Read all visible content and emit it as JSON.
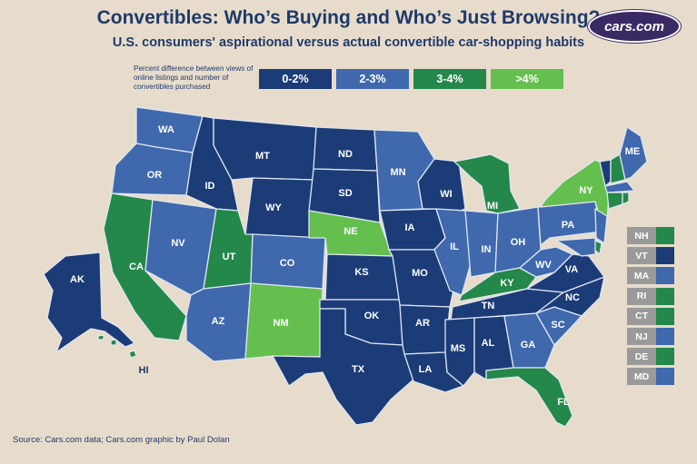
{
  "title": "Convertibles: Who’s Buying and Who’s Just Browsing?",
  "subtitle": "U.S. consumers' aspirational versus actual convertible car-shopping habits",
  "logo_text": "cars.com",
  "legend": {
    "description": "Percent difference between views of online listings and number of convertibles purchased",
    "items": [
      {
        "label": "0-2%",
        "color": "#1c3c78"
      },
      {
        "label": "2-3%",
        "color": "#3f68ad"
      },
      {
        "label": "3-4%",
        "color": "#23884a"
      },
      {
        "label": ">4%",
        "color": "#64bf4f"
      }
    ]
  },
  "states": {
    "WA": {
      "label": "WA",
      "category": "2-3%"
    },
    "OR": {
      "label": "OR",
      "category": "2-3%"
    },
    "CA": {
      "label": "CA",
      "category": "3-4%"
    },
    "NV": {
      "label": "NV",
      "category": "2-3%"
    },
    "ID": {
      "label": "ID",
      "category": "0-2%"
    },
    "MT": {
      "label": "MT",
      "category": "0-2%"
    },
    "WY": {
      "label": "WY",
      "category": "0-2%"
    },
    "UT": {
      "label": "UT",
      "category": "3-4%"
    },
    "CO": {
      "label": "CO",
      "category": "2-3%"
    },
    "AZ": {
      "label": "AZ",
      "category": "2-3%"
    },
    "NM": {
      "label": "NM",
      "category": ">4%"
    },
    "ND": {
      "label": "ND",
      "category": "0-2%"
    },
    "SD": {
      "label": "SD",
      "category": "0-2%"
    },
    "NE": {
      "label": "NE",
      "category": ">4%"
    },
    "KS": {
      "label": "KS",
      "category": "0-2%"
    },
    "OK": {
      "label": "OK",
      "category": "0-2%"
    },
    "TX": {
      "label": "TX",
      "category": "0-2%"
    },
    "MN": {
      "label": "MN",
      "category": "2-3%"
    },
    "IA": {
      "label": "IA",
      "category": "0-2%"
    },
    "MO": {
      "label": "MO",
      "category": "0-2%"
    },
    "AR": {
      "label": "AR",
      "category": "0-2%"
    },
    "LA": {
      "label": "LA",
      "category": "0-2%"
    },
    "WI": {
      "label": "WI",
      "category": "0-2%"
    },
    "IL": {
      "label": "IL",
      "category": "2-3%"
    },
    "MI": {
      "label": "MI",
      "category": "3-4%"
    },
    "IN": {
      "label": "IN",
      "category": "2-3%"
    },
    "OH": {
      "label": "OH",
      "category": "2-3%"
    },
    "KY": {
      "label": "KY",
      "category": "3-4%"
    },
    "TN": {
      "label": "TN",
      "category": "0-2%"
    },
    "MS": {
      "label": "MS",
      "category": "0-2%"
    },
    "AL": {
      "label": "AL",
      "category": "0-2%"
    },
    "GA": {
      "label": "GA",
      "category": "2-3%"
    },
    "FL": {
      "label": "FL",
      "category": "3-4%"
    },
    "SC": {
      "label": "SC",
      "category": "2-3%"
    },
    "NC": {
      "label": "NC",
      "category": "0-2%"
    },
    "VA": {
      "label": "VA",
      "category": "0-2%"
    },
    "WV": {
      "label": "WV",
      "category": "2-3%"
    },
    "PA": {
      "label": "PA",
      "category": "2-3%"
    },
    "NY": {
      "label": "NY",
      "category": ">4%"
    },
    "ME": {
      "label": "ME",
      "category": "2-3%"
    },
    "AK": {
      "label": "AK",
      "category": "0-2%"
    },
    "HI": {
      "label": "HI",
      "category": "3-4%"
    }
  },
  "small_states": [
    {
      "abbr": "NH",
      "category": "3-4%"
    },
    {
      "abbr": "VT",
      "category": "0-2%"
    },
    {
      "abbr": "MA",
      "category": "2-3%"
    },
    {
      "abbr": "RI",
      "category": "3-4%"
    },
    {
      "abbr": "CT",
      "category": "3-4%"
    },
    {
      "abbr": "NJ",
      "category": "2-3%"
    },
    {
      "abbr": "DE",
      "category": "3-4%"
    },
    {
      "abbr": "MD",
      "category": "2-3%"
    }
  ],
  "source": "Source: Cars.com data; Cars.com graphic by Paul Dolan"
}
